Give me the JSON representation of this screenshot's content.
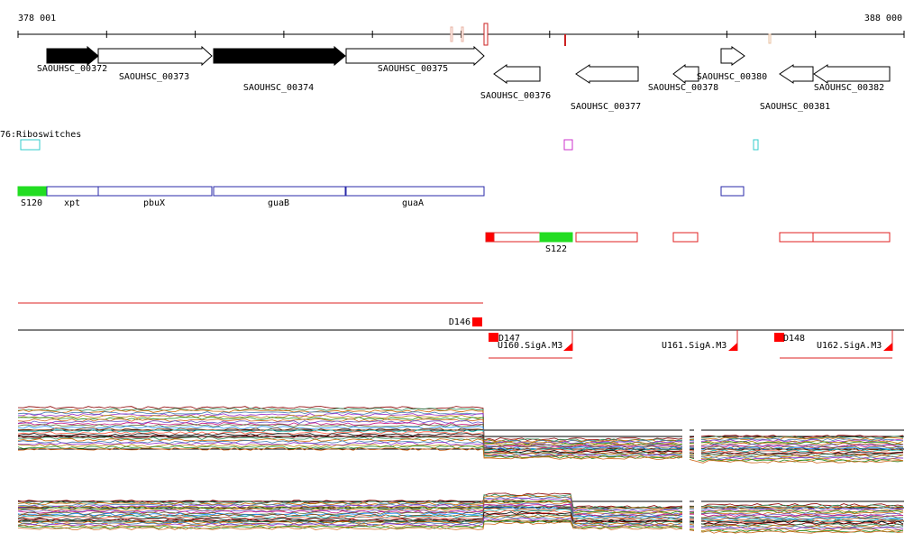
{
  "axis": {
    "start_label": "378 001",
    "end_label": "388 000"
  },
  "genes": [
    {
      "label": "SAOUHSC_00372",
      "strand": "+",
      "filled": true
    },
    {
      "label": "SAOUHSC_00373",
      "strand": "+",
      "filled": false
    },
    {
      "label": "SAOUHSC_00374",
      "strand": "+",
      "filled": true
    },
    {
      "label": "SAOUHSC_00375",
      "strand": "+",
      "filled": false
    },
    {
      "label": "SAOUHSC_00376",
      "strand": "-",
      "filled": false
    },
    {
      "label": "SAOUHSC_00377",
      "strand": "-",
      "filled": false
    },
    {
      "label": "SAOUHSC_00378",
      "strand": "-",
      "filled": false
    },
    {
      "label": "SAOUHSC_00380",
      "strand": "+",
      "filled": false
    },
    {
      "label": "SAOUHSC_00381",
      "strand": "-",
      "filled": false
    },
    {
      "label": "SAOUHSC_00382",
      "strand": "-",
      "filled": false
    }
  ],
  "riboswitch_track": {
    "label": "76:Riboswitches"
  },
  "operon_labels": {
    "s120": "S120",
    "xpt": "xpt",
    "pbux": "pbuX",
    "guab": "guaB",
    "guaa": "guaA"
  },
  "operon_minus_labels": {
    "s122": "S122"
  },
  "dividers": {
    "d146": "D146",
    "d147": "D147",
    "d148": "D148"
  },
  "promoters": {
    "u160": "U160.SigA.M3",
    "u161": "U161.SigA.M3",
    "u162": "U162.SigA.M3"
  },
  "colors": {
    "gene_fill": "#000000",
    "operon_plus": "#2a2aa8",
    "operon_minus": "#e02020",
    "highlight": "#22dd22",
    "riboswitch_cyan": "#33cccc",
    "riboswitch_magenta": "#cc33cc",
    "marker_red": "#ff0000"
  },
  "icons": {
    "gene": "gene-arrow-icon",
    "promoter": "promoter-flag-icon"
  }
}
